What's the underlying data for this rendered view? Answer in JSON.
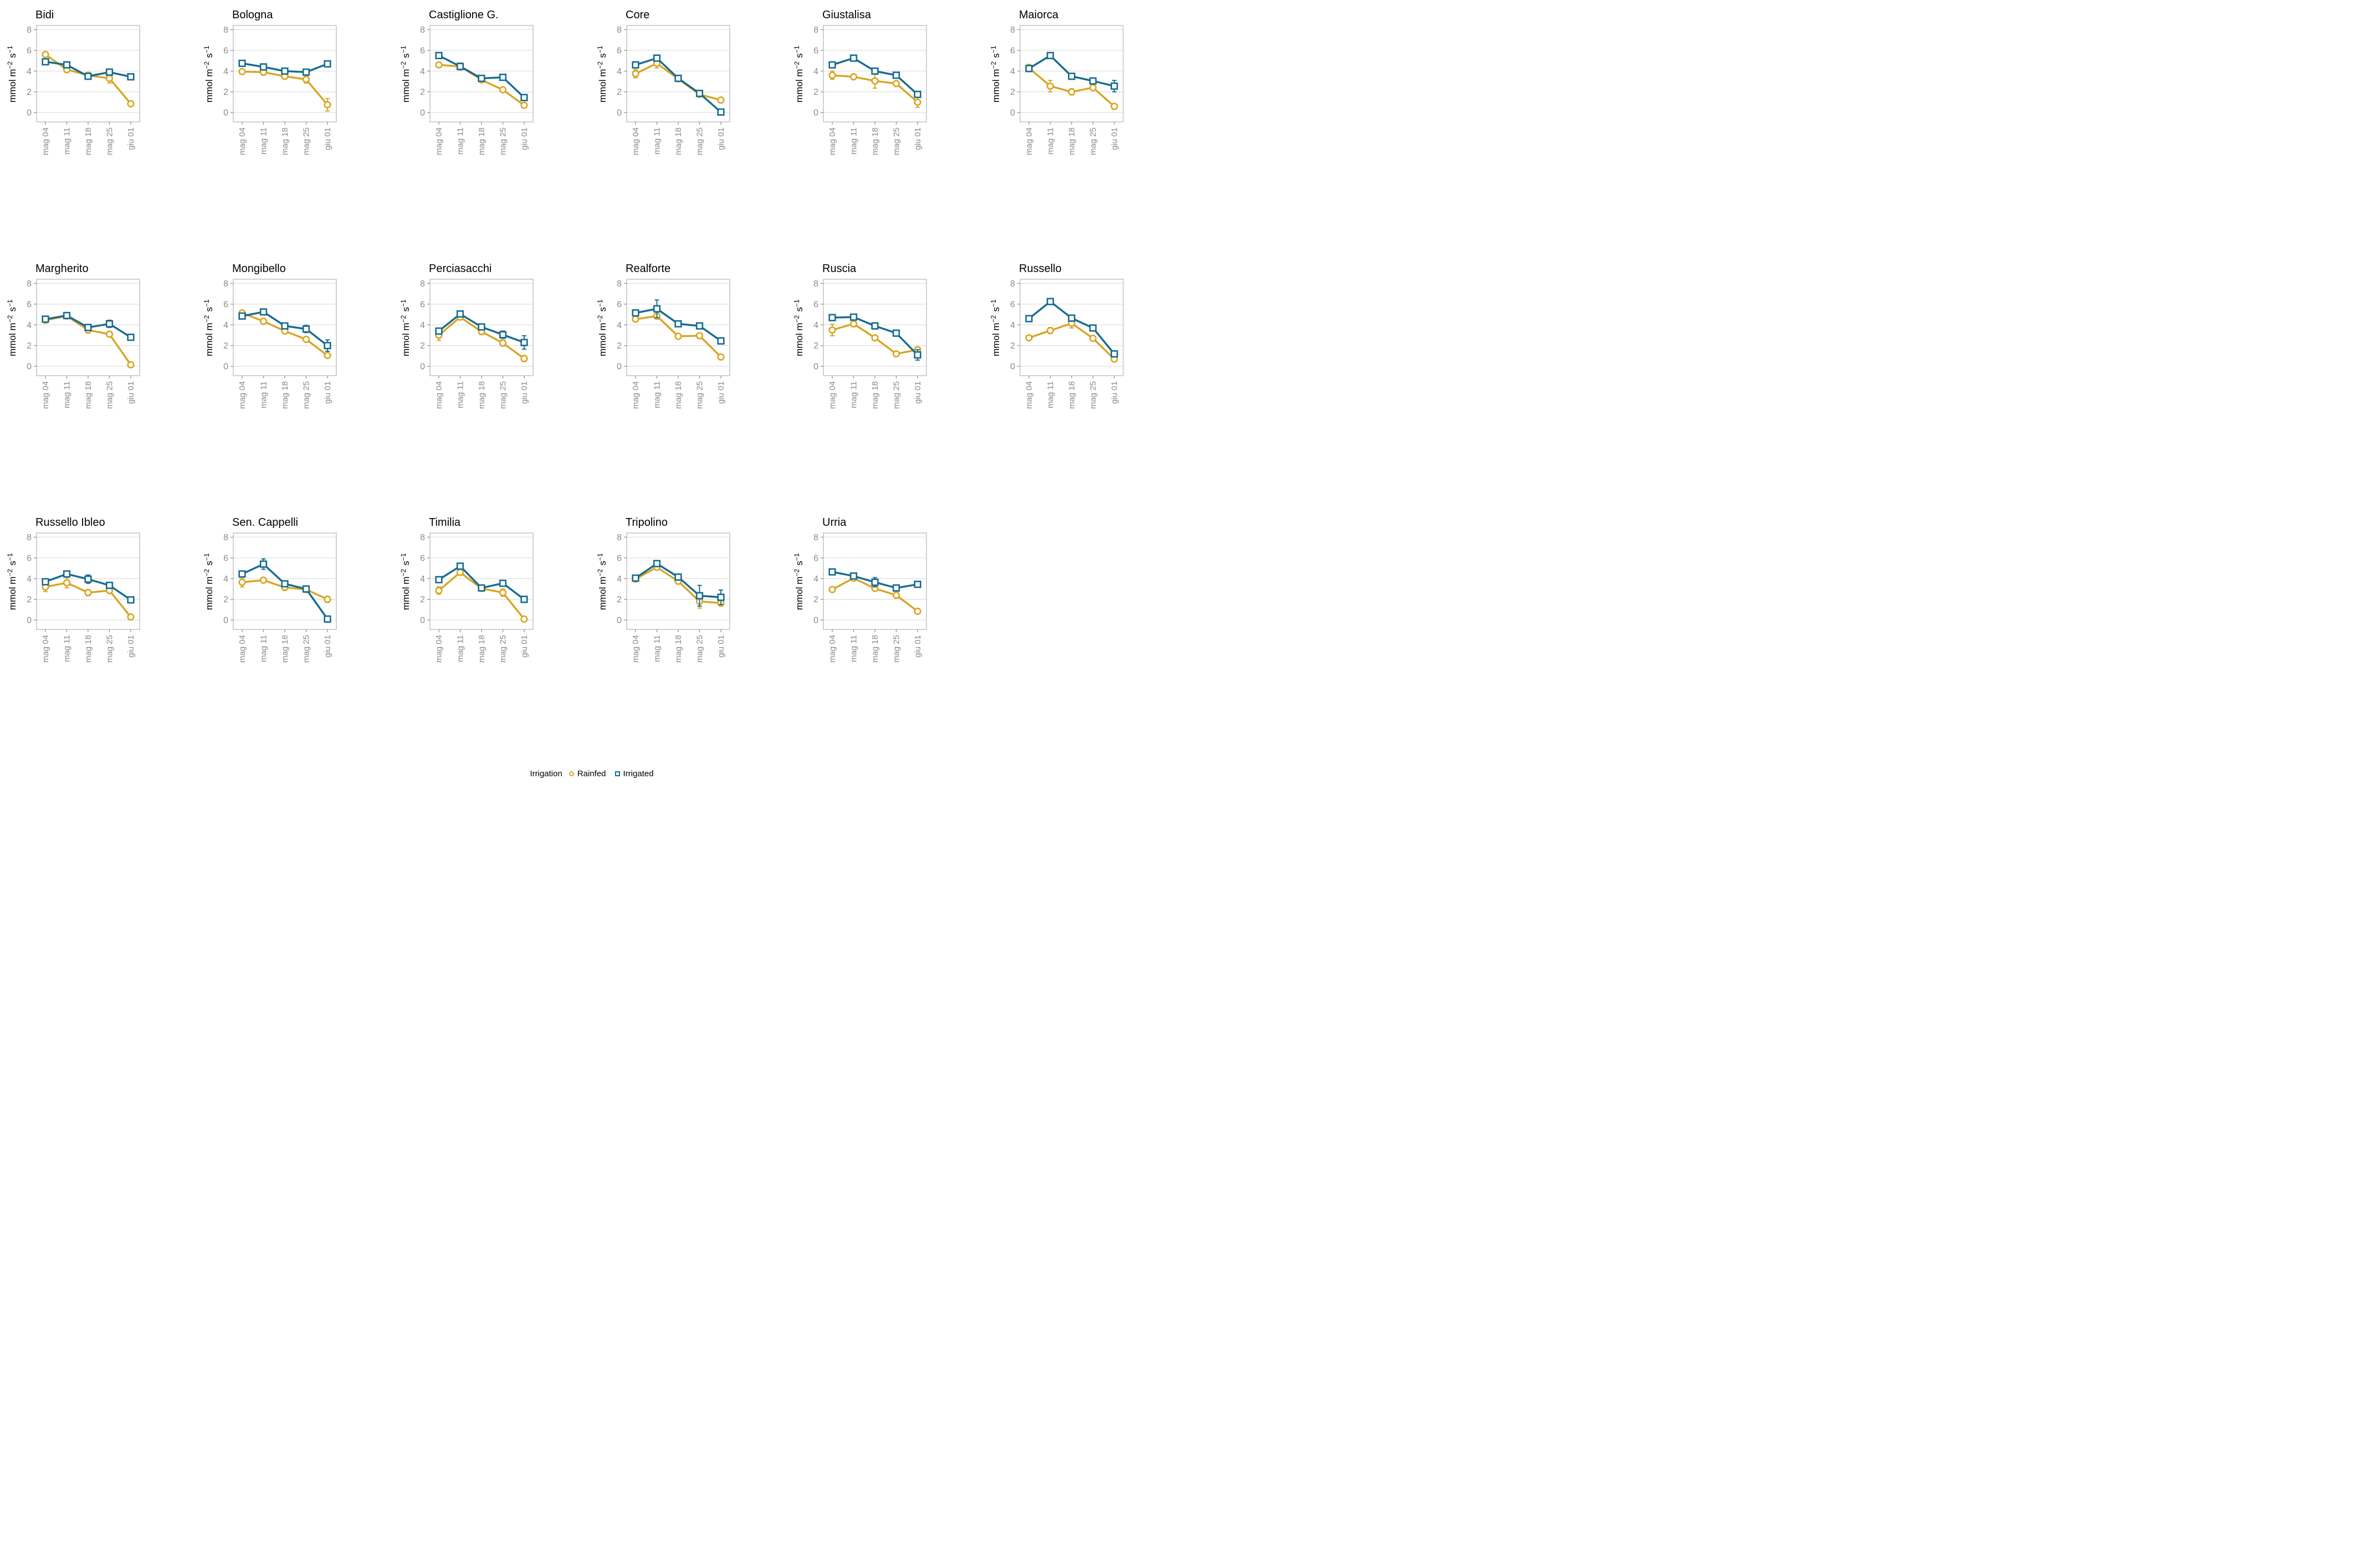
{
  "colors": {
    "rainfed": "#D9A521",
    "irrigated": "#166B8F",
    "grid_line": "#E3E3E3",
    "panel_border": "#C6C6C6",
    "tick_mark": "#999999",
    "tick_text": "#8A8A8A",
    "title_text": "#000000"
  },
  "chart_data": {
    "type": "line",
    "facet_layout": {
      "rows": 3,
      "cols": 6,
      "panel_count": 17
    },
    "x_categories": [
      "mag 04",
      "mag 11",
      "mag 18",
      "mag 25",
      "giu 01"
    ],
    "ylabel": "mmol m−2 s−1",
    "ylabel_parts": [
      {
        "text": "mmol m",
        "sup": false
      },
      {
        "text": "−2",
        "sup": true
      },
      {
        "text": " s",
        "sup": false
      },
      {
        "text": "−1",
        "sup": true
      }
    ],
    "ylim": [
      -0.9,
      8.4
    ],
    "yticks": [
      0,
      2,
      4,
      6,
      8
    ],
    "grid": "horizontal-major",
    "legend": {
      "title": "Irrigation",
      "position": "bottom",
      "entries": [
        {
          "label": "Rainfed",
          "marker": "circle",
          "color": "#D9A521"
        },
        {
          "label": "Irrigated",
          "marker": "square",
          "color": "#166B8F"
        }
      ]
    },
    "panels": [
      {
        "title": "Bidi",
        "series": [
          {
            "name": "Rainfed",
            "values": [
              5.6,
              4.15,
              3.6,
              3.3,
              0.85
            ],
            "errors": [
              0.15,
              0.3,
              0.1,
              0.45,
              0.1
            ]
          },
          {
            "name": "Irrigated",
            "values": [
              4.9,
              4.6,
              3.5,
              3.9,
              3.45
            ],
            "errors": [
              0.25,
              0.15,
              0.15,
              0.15,
              0.25
            ]
          }
        ]
      },
      {
        "title": "Bologna",
        "series": [
          {
            "name": "Rainfed",
            "values": [
              3.95,
              3.9,
              3.5,
              3.2,
              0.75
            ],
            "errors": [
              0.1,
              0.3,
              0.1,
              0.35,
              0.6
            ]
          },
          {
            "name": "Irrigated",
            "values": [
              4.75,
              4.4,
              4.0,
              3.9,
              4.7
            ],
            "errors": [
              0.1,
              0.15,
              0.1,
              0.2,
              0.1
            ]
          }
        ]
      },
      {
        "title": "Castiglione G.",
        "series": [
          {
            "name": "Rainfed",
            "values": [
              4.6,
              4.45,
              3.15,
              2.2,
              0.7
            ],
            "errors": [
              0.1,
              0.35,
              0.1,
              0.1,
              0.1
            ]
          },
          {
            "name": "Irrigated",
            "values": [
              5.5,
              4.45,
              3.3,
              3.4,
              1.45
            ],
            "errors": [
              0.1,
              0.25,
              0.15,
              0.1,
              0.3
            ]
          }
        ]
      },
      {
        "title": "Core",
        "series": [
          {
            "name": "Rainfed",
            "values": [
              3.75,
              4.75,
              3.25,
              1.75,
              1.2
            ],
            "errors": [
              0.4,
              0.45,
              0.1,
              0.1,
              0.1
            ]
          },
          {
            "name": "Irrigated",
            "values": [
              4.6,
              5.25,
              3.3,
              1.85,
              0.05
            ],
            "errors": [
              0.2,
              0.3,
              0.1,
              0.1,
              0.1
            ]
          }
        ]
      },
      {
        "title": "Giustalisa",
        "series": [
          {
            "name": "Rainfed",
            "values": [
              3.6,
              3.45,
              3.05,
              2.8,
              1.0
            ],
            "errors": [
              0.4,
              0.15,
              0.7,
              0.15,
              0.5
            ]
          },
          {
            "name": "Irrigated",
            "values": [
              4.6,
              5.25,
              4.0,
              3.6,
              1.75
            ],
            "errors": [
              0.15,
              0.25,
              0.2,
              0.15,
              0.3
            ]
          }
        ]
      },
      {
        "title": "Maiorca",
        "series": [
          {
            "name": "Rainfed",
            "values": [
              4.3,
              2.55,
              2.0,
              2.4,
              0.6
            ],
            "errors": [
              0.35,
              0.55,
              0.3,
              0.1,
              0.25
            ]
          },
          {
            "name": "Irrigated",
            "values": [
              4.25,
              5.5,
              3.5,
              3.05,
              2.55
            ],
            "errors": [
              0.3,
              0.2,
              0.1,
              0.15,
              0.55
            ]
          }
        ]
      },
      {
        "title": "Margherito",
        "series": [
          {
            "name": "Rainfed",
            "values": [
              4.45,
              4.85,
              3.5,
              3.1,
              0.15
            ],
            "errors": [
              0.15,
              0.1,
              0.3,
              0.25,
              0.05
            ]
          },
          {
            "name": "Irrigated",
            "values": [
              4.55,
              4.9,
              3.75,
              4.1,
              2.8
            ],
            "errors": [
              0.1,
              0.1,
              0.15,
              0.35,
              0.1
            ]
          }
        ]
      },
      {
        "title": "Mongibello",
        "series": [
          {
            "name": "Rainfed",
            "values": [
              5.15,
              4.35,
              3.4,
              2.6,
              1.05
            ],
            "errors": [
              0.2,
              0.25,
              0.1,
              0.25,
              0.1
            ]
          },
          {
            "name": "Irrigated",
            "values": [
              4.85,
              5.25,
              3.9,
              3.6,
              2.0
            ],
            "errors": [
              0.2,
              0.25,
              0.15,
              0.35,
              0.55
            ]
          }
        ]
      },
      {
        "title": "Perciasacchi",
        "series": [
          {
            "name": "Rainfed",
            "values": [
              3.0,
              4.75,
              3.35,
              2.25,
              0.75
            ],
            "errors": [
              0.5,
              0.1,
              0.3,
              0.3,
              0.3
            ]
          },
          {
            "name": "Irrigated",
            "values": [
              3.4,
              5.05,
              3.8,
              3.05,
              2.3
            ],
            "errors": [
              0.2,
              0.15,
              0.15,
              0.35,
              0.65
            ]
          }
        ]
      },
      {
        "title": "Realforte",
        "series": [
          {
            "name": "Rainfed",
            "values": [
              4.55,
              4.85,
              2.9,
              2.95,
              0.9
            ],
            "errors": [
              0.25,
              0.3,
              0.15,
              0.25,
              0.15
            ]
          },
          {
            "name": "Irrigated",
            "values": [
              5.15,
              5.55,
              4.1,
              3.9,
              2.45
            ],
            "errors": [
              0.2,
              0.85,
              0.15,
              0.1,
              0.3
            ]
          }
        ]
      },
      {
        "title": "Ruscia",
        "series": [
          {
            "name": "Rainfed",
            "values": [
              3.5,
              4.1,
              2.75,
              1.2,
              1.6
            ],
            "errors": [
              0.55,
              0.3,
              0.1,
              0.1,
              0.1
            ]
          },
          {
            "name": "Irrigated",
            "values": [
              4.7,
              4.75,
              3.9,
              3.2,
              1.1
            ],
            "errors": [
              0.15,
              0.15,
              0.3,
              0.15,
              0.5
            ]
          }
        ]
      },
      {
        "title": "Russello",
        "series": [
          {
            "name": "Rainfed",
            "values": [
              2.75,
              3.45,
              4.15,
              2.7,
              0.7
            ],
            "errors": [
              0.15,
              0.3,
              0.45,
              0.2,
              0.2
            ]
          },
          {
            "name": "Irrigated",
            "values": [
              4.6,
              6.25,
              4.65,
              3.7,
              1.2
            ],
            "errors": [
              0.25,
              0.1,
              0.3,
              0.1,
              0.15
            ]
          }
        ]
      },
      {
        "title": "Russello Ibleo",
        "series": [
          {
            "name": "Rainfed",
            "values": [
              3.2,
              3.6,
              2.65,
              2.85,
              0.3
            ],
            "errors": [
              0.45,
              0.5,
              0.3,
              0.1,
              0.25
            ]
          },
          {
            "name": "Irrigated",
            "values": [
              3.7,
              4.45,
              3.95,
              3.35,
              1.95
            ],
            "errors": [
              0.15,
              0.15,
              0.4,
              0.1,
              0.15
            ]
          }
        ]
      },
      {
        "title": "Sen. Cappelli",
        "series": [
          {
            "name": "Rainfed",
            "values": [
              3.65,
              3.85,
              3.15,
              2.95,
              2.0
            ],
            "errors": [
              0.45,
              0.25,
              0.3,
              0.2,
              0.3
            ]
          },
          {
            "name": "Irrigated",
            "values": [
              4.45,
              5.4,
              3.5,
              3.0,
              0.1
            ],
            "errors": [
              0.15,
              0.5,
              0.15,
              0.3,
              0.05
            ]
          }
        ]
      },
      {
        "title": "Timilia",
        "series": [
          {
            "name": "Rainfed",
            "values": [
              2.85,
              4.6,
              3.05,
              2.65,
              0.1
            ],
            "errors": [
              0.35,
              0.15,
              0.25,
              0.35,
              0.05
            ]
          },
          {
            "name": "Irrigated",
            "values": [
              3.9,
              5.2,
              3.1,
              3.55,
              2.0
            ],
            "errors": [
              0.15,
              0.2,
              0.2,
              0.15,
              0.3
            ]
          }
        ]
      },
      {
        "title": "Tripolino",
        "series": [
          {
            "name": "Rainfed",
            "values": [
              3.95,
              5.1,
              3.75,
              1.8,
              1.65
            ],
            "errors": [
              0.15,
              0.25,
              0.15,
              0.65,
              0.3
            ]
          },
          {
            "name": "Irrigated",
            "values": [
              4.05,
              5.45,
              4.15,
              2.35,
              2.2
            ],
            "errors": [
              0.2,
              0.15,
              0.3,
              1.0,
              0.7
            ]
          }
        ]
      },
      {
        "title": "Urria",
        "series": [
          {
            "name": "Rainfed",
            "values": [
              2.95,
              4.05,
              3.05,
              2.4,
              0.85
            ],
            "errors": [
              0.1,
              0.25,
              0.1,
              0.3,
              0.05
            ]
          },
          {
            "name": "Irrigated",
            "values": [
              4.65,
              4.25,
              3.65,
              3.1,
              3.45
            ],
            "errors": [
              0.25,
              0.2,
              0.45,
              0.25,
              0.1
            ]
          }
        ]
      }
    ]
  }
}
